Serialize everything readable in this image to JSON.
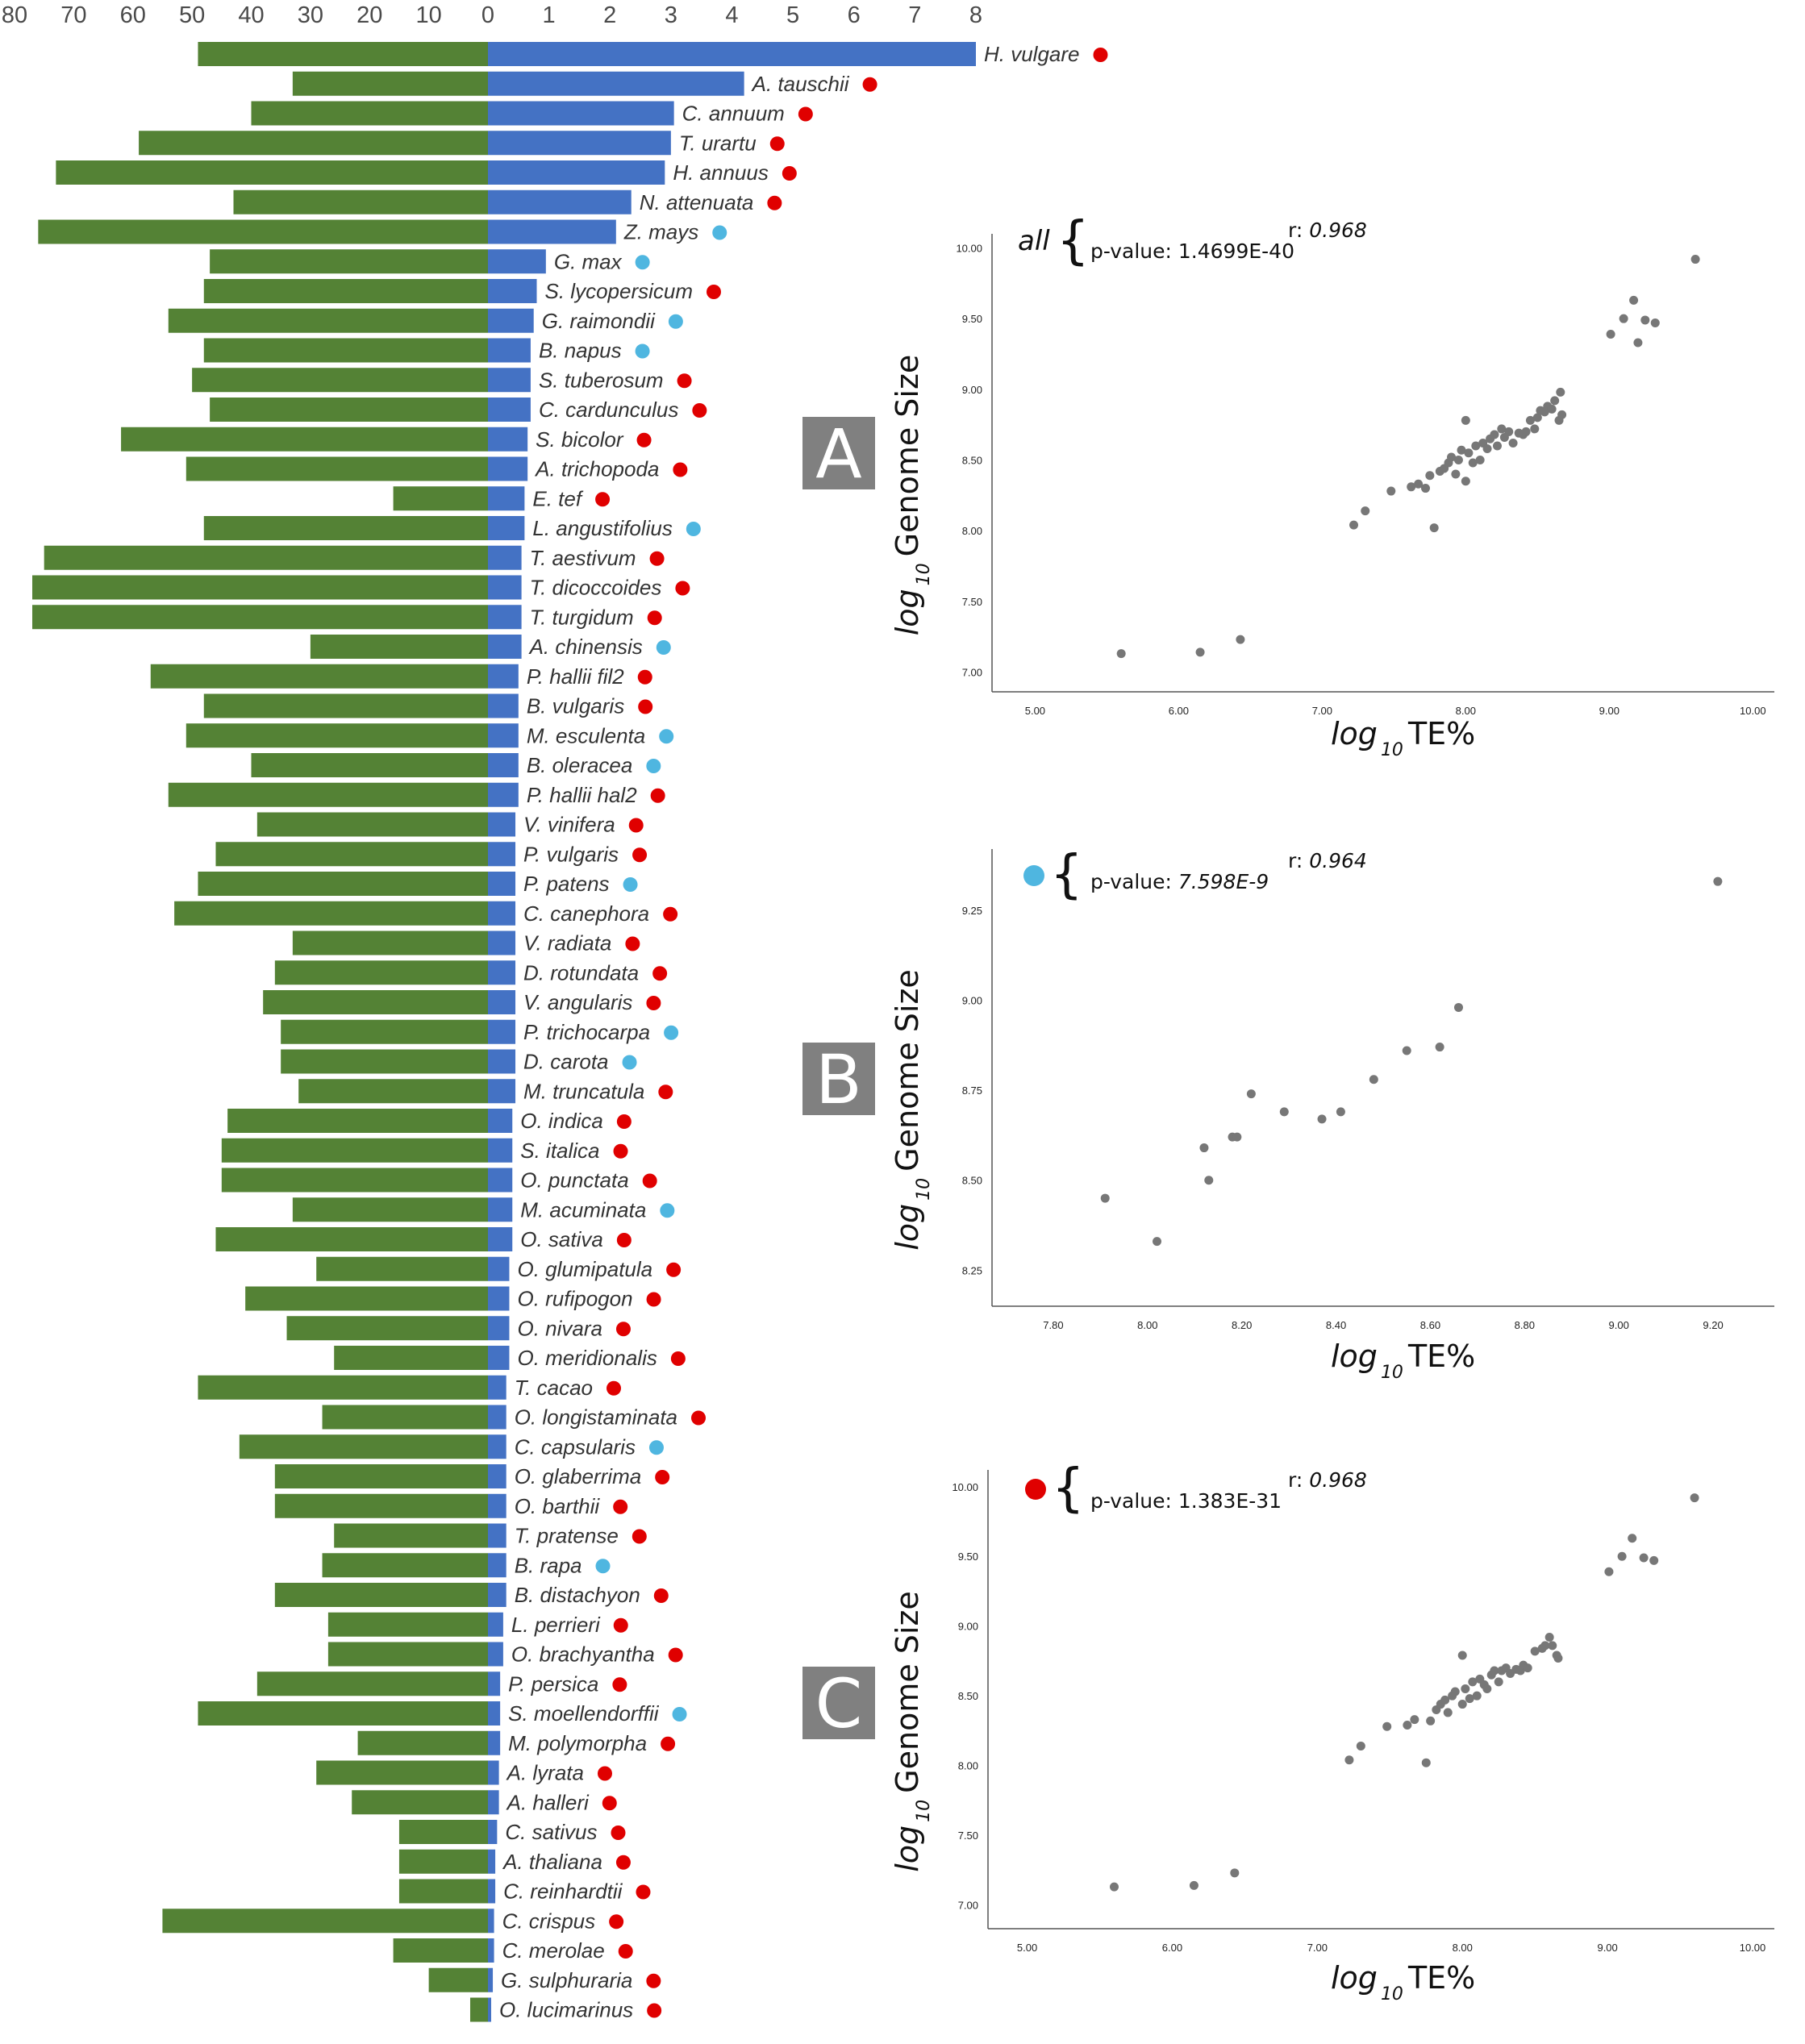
{
  "colors": {
    "green_bar": "#548235",
    "blue_bar": "#4472c4",
    "red_dot": "#e00000",
    "cyan_dot": "#4fb6e0",
    "scatter_point": "#777777",
    "panel_box": "#808080",
    "axis_line": "#555555"
  },
  "chart_data": [
    {
      "type": "bar",
      "orientation": "horizontal-diverging",
      "left_ticks": [
        "80",
        "70",
        "60",
        "50",
        "40",
        "30",
        "20",
        "10",
        "0"
      ],
      "right_ticks": [
        "1",
        "2",
        "3",
        "4",
        "5",
        "6",
        "7",
        "8"
      ],
      "left_range": [
        0,
        80
      ],
      "right_range": [
        0,
        8
      ],
      "categories": [
        "H. vulgare",
        "A. tauschii",
        "C. annuum",
        "T. urartu",
        "H. annuus",
        "N. attenuata",
        "Z. mays",
        "G. max",
        "S. lycopersicum",
        "G. raimondii",
        "B. napus",
        "S. tuberosum",
        "C. cardunculus",
        "S. bicolor",
        "A. trichopoda",
        "E. tef",
        "L. angustifolius",
        "T. aestivum",
        "T. dicoccoides",
        "T. turgidum",
        "A. chinensis",
        "P. hallii fil2",
        "B. vulgaris",
        "M. esculenta",
        "B. oleracea",
        "P. hallii hal2",
        "V. vinifera",
        "P. vulgaris",
        "P. patens",
        "C. canephora",
        "V. radiata",
        "D. rotundata",
        "V. angularis",
        "P. trichocarpa",
        "D. carota",
        "M. truncatula",
        "O. indica",
        "S. italica",
        "O. punctata",
        "M. acuminata",
        "O. sativa",
        "O. glumipatula",
        "O. rufipogon",
        "O. nivara",
        "O. meridionalis",
        "T. cacao",
        "O. longistaminata",
        "C. capsularis",
        "O. glaberrima",
        "O. barthii",
        "T. pratense",
        "B. rapa",
        "B. distachyon",
        "L. perrieri",
        "O. brachyantha",
        "P. persica",
        "S. moellendorffii",
        "M. polymorpha",
        "A. lyrata",
        "A. halleri",
        "C. sativus",
        "A. thaliana",
        "C. reinhardtii",
        "C. crispus",
        "C. merolae",
        "G. sulphuraria",
        "O. lucimarinus"
      ],
      "series": [
        {
          "side": "left",
          "values": [
            49,
            33,
            40,
            59,
            73,
            43,
            76,
            47,
            48,
            54,
            48,
            50,
            47,
            62,
            51,
            16,
            48,
            75,
            77,
            77,
            30,
            57,
            48,
            51,
            40,
            54,
            39,
            46,
            49,
            53,
            33,
            36,
            38,
            35,
            35,
            32,
            44,
            45,
            45,
            33,
            46,
            29,
            41,
            34,
            26,
            49,
            28,
            42,
            36,
            36,
            26,
            28,
            36,
            27,
            27,
            39,
            49,
            22,
            29,
            23,
            15,
            15,
            15,
            55,
            16,
            10,
            3
          ]
        },
        {
          "side": "right",
          "values": [
            8.0,
            4.2,
            3.05,
            3.0,
            2.9,
            2.35,
            2.1,
            0.95,
            0.8,
            0.75,
            0.7,
            0.7,
            0.7,
            0.65,
            0.65,
            0.6,
            0.6,
            0.55,
            0.55,
            0.55,
            0.55,
            0.5,
            0.5,
            0.5,
            0.5,
            0.5,
            0.45,
            0.45,
            0.45,
            0.45,
            0.45,
            0.45,
            0.45,
            0.45,
            0.45,
            0.45,
            0.4,
            0.4,
            0.4,
            0.4,
            0.4,
            0.35,
            0.35,
            0.35,
            0.35,
            0.3,
            0.3,
            0.3,
            0.3,
            0.3,
            0.3,
            0.3,
            0.3,
            0.25,
            0.25,
            0.2,
            0.2,
            0.2,
            0.18,
            0.18,
            0.15,
            0.12,
            0.12,
            0.1,
            0.1,
            0.08,
            0.05
          ]
        }
      ],
      "markers": [
        "red",
        "red",
        "red",
        "red",
        "red",
        "red",
        "cyan",
        "cyan",
        "red",
        "cyan",
        "cyan",
        "red",
        "red",
        "red",
        "red",
        "red",
        "cyan",
        "red",
        "red",
        "red",
        "cyan",
        "red",
        "red",
        "cyan",
        "cyan",
        "red",
        "red",
        "red",
        "cyan",
        "red",
        "red",
        "red",
        "red",
        "cyan",
        "cyan",
        "red",
        "red",
        "red",
        "red",
        "cyan",
        "red",
        "red",
        "red",
        "red",
        "red",
        "red",
        "red",
        "cyan",
        "red",
        "red",
        "red",
        "cyan",
        "red",
        "red",
        "red",
        "red",
        "cyan",
        "red",
        "red",
        "red",
        "red",
        "red",
        "red",
        "red",
        "red",
        "red",
        "red"
      ]
    },
    {
      "type": "scatter",
      "panel": "A",
      "legend": "all",
      "r_label": "r:",
      "r_value": "0.968",
      "p_label": "p-value:",
      "p_value": "1.4699E-40",
      "r_italic": true,
      "p_italic": false,
      "xlabel_prefix": "log",
      "xlabel_sub": "10",
      "xlabel_main": "TE%",
      "ylabel_prefix": "log",
      "ylabel_sub": "10",
      "ylabel_main": "Genome Size",
      "xlim": [
        4.7,
        10.15
      ],
      "ylim": [
        6.86,
        10.1
      ],
      "xticks": [
        "5.00",
        "6.00",
        "7.00",
        "8.00",
        "9.00",
        "10.00"
      ],
      "yticks": [
        "7.00",
        "7.50",
        "8.00",
        "8.50",
        "9.00",
        "9.50",
        "10.00"
      ],
      "x": [
        5.6,
        6.15,
        6.43,
        7.22,
        7.3,
        7.48,
        7.62,
        7.67,
        7.72,
        7.78,
        7.82,
        7.85,
        7.88,
        7.9,
        7.93,
        7.95,
        7.97,
        8.0,
        8.02,
        8.05,
        8.07,
        8.1,
        8.12,
        8.15,
        8.17,
        8.2,
        8.22,
        8.25,
        8.27,
        8.3,
        8.33,
        8.37,
        8.4,
        8.42,
        8.45,
        8.48,
        8.5,
        8.52,
        8.55,
        8.57,
        8.6,
        8.62,
        8.65,
        8.66,
        8.67,
        9.01,
        9.1,
        9.17,
        9.2,
        9.25,
        9.32,
        9.6,
        8.0,
        7.75
      ],
      "y": [
        7.13,
        7.14,
        7.23,
        8.04,
        8.14,
        8.28,
        8.31,
        8.33,
        8.3,
        8.02,
        8.42,
        8.44,
        8.48,
        8.52,
        8.4,
        8.5,
        8.57,
        8.78,
        8.55,
        8.48,
        8.6,
        8.5,
        8.62,
        8.58,
        8.65,
        8.68,
        8.6,
        8.72,
        8.66,
        8.7,
        8.62,
        8.69,
        8.68,
        8.7,
        8.78,
        8.72,
        8.8,
        8.85,
        8.84,
        8.88,
        8.86,
        8.92,
        8.78,
        8.98,
        8.82,
        9.39,
        9.5,
        9.63,
        9.33,
        9.49,
        9.47,
        9.92,
        8.35,
        8.39
      ]
    },
    {
      "type": "scatter",
      "panel": "B",
      "legend": "cyan",
      "r_label": "r:",
      "r_value": "0.964",
      "p_label": "p-value:",
      "p_value": "7.598E-9",
      "r_italic": true,
      "p_italic": true,
      "xlabel_prefix": "log",
      "xlabel_sub": "10",
      "xlabel_main": "TE%",
      "ylabel_prefix": "log",
      "ylabel_sub": "10",
      "ylabel_main": "Genome Size",
      "xlim": [
        7.67,
        9.33
      ],
      "ylim": [
        8.15,
        9.42
      ],
      "xticks": [
        "7.80",
        "8.00",
        "8.20",
        "8.40",
        "8.60",
        "8.80",
        "9.00",
        "9.20"
      ],
      "yticks": [
        "8.25",
        "8.50",
        "8.75",
        "9.00",
        "9.25"
      ],
      "x": [
        7.91,
        8.02,
        8.12,
        8.13,
        8.18,
        8.19,
        8.22,
        8.29,
        8.37,
        8.41,
        8.48,
        8.55,
        8.62,
        8.66,
        9.21
      ],
      "y": [
        8.45,
        8.33,
        8.59,
        8.5,
        8.62,
        8.62,
        8.74,
        8.69,
        8.67,
        8.69,
        8.78,
        8.86,
        8.87,
        8.98,
        9.33
      ]
    },
    {
      "type": "scatter",
      "panel": "C",
      "legend": "red",
      "r_label": "r:",
      "r_value": "0.968",
      "p_label": "p-value:",
      "p_value": "1.383E-31",
      "r_italic": true,
      "p_italic": false,
      "xlabel_prefix": "log",
      "xlabel_sub": "10",
      "xlabel_main": "TE%",
      "ylabel_prefix": "log",
      "ylabel_sub": "10",
      "ylabel_main": "Genome Size",
      "xlim": [
        4.73,
        10.15
      ],
      "ylim": [
        6.83,
        10.12
      ],
      "xticks": [
        "5.00",
        "6.00",
        "7.00",
        "8.00",
        "9.00",
        "10.00"
      ],
      "yticks": [
        "7.00",
        "7.50",
        "8.00",
        "8.50",
        "9.00",
        "9.50",
        "10.00"
      ],
      "x": [
        5.6,
        6.15,
        6.43,
        7.22,
        7.3,
        7.48,
        7.62,
        7.67,
        7.75,
        7.78,
        7.82,
        7.85,
        7.88,
        7.9,
        7.93,
        7.95,
        8.0,
        8.02,
        8.05,
        8.07,
        8.1,
        8.12,
        8.15,
        8.17,
        8.2,
        8.22,
        8.25,
        8.27,
        8.3,
        8.33,
        8.37,
        8.4,
        8.42,
        8.45,
        8.5,
        8.55,
        8.57,
        8.6,
        8.62,
        8.65,
        8.66,
        9.01,
        9.1,
        9.17,
        9.25,
        9.32,
        9.6,
        8.0
      ],
      "y": [
        7.13,
        7.14,
        7.23,
        8.04,
        8.14,
        8.28,
        8.29,
        8.33,
        8.02,
        8.32,
        8.4,
        8.44,
        8.47,
        8.38,
        8.5,
        8.53,
        8.79,
        8.55,
        8.48,
        8.6,
        8.5,
        8.62,
        8.58,
        8.55,
        8.65,
        8.68,
        8.6,
        8.68,
        8.7,
        8.66,
        8.69,
        8.68,
        8.72,
        8.7,
        8.82,
        8.84,
        8.86,
        8.92,
        8.86,
        8.79,
        8.77,
        9.39,
        9.5,
        9.63,
        9.49,
        9.47,
        9.92,
        8.44
      ]
    }
  ]
}
